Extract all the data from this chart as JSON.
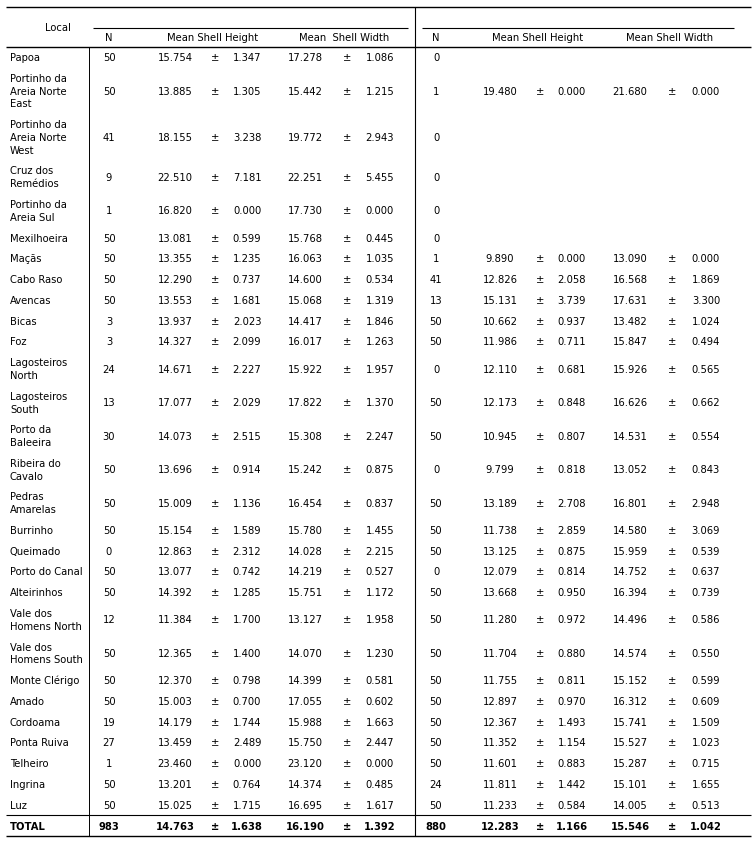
{
  "rows": [
    {
      "local": "Papoa",
      "n1": "50",
      "msh1": "15.754",
      "sd_h1": "1.347",
      "msw1": "17.278",
      "sd_w1": "1.086",
      "n2": "0",
      "msh2": "",
      "sd_h2": "",
      "msw2": "",
      "sd_w2": ""
    },
    {
      "local": "Portinho da\nAreia Norte\nEast",
      "n1": "50",
      "msh1": "13.885",
      "sd_h1": "1.305",
      "msw1": "15.442",
      "sd_w1": "1.215",
      "n2": "1",
      "msh2": "19.480",
      "sd_h2": "0.000",
      "msw2": "21.680",
      "sd_w2": "0.000"
    },
    {
      "local": "Portinho da\nAreia Norte\nWest",
      "n1": "41",
      "msh1": "18.155",
      "sd_h1": "3.238",
      "msw1": "19.772",
      "sd_w1": "2.943",
      "n2": "0",
      "msh2": "",
      "sd_h2": "",
      "msw2": "",
      "sd_w2": ""
    },
    {
      "local": "Cruz dos\nRemédios",
      "n1": "9",
      "msh1": "22.510",
      "sd_h1": "7.181",
      "msw1": "22.251",
      "sd_w1": "5.455",
      "n2": "0",
      "msh2": "",
      "sd_h2": "",
      "msw2": "",
      "sd_w2": ""
    },
    {
      "local": "Portinho da\nAreia Sul",
      "n1": "1",
      "msh1": "16.820",
      "sd_h1": "0.000",
      "msw1": "17.730",
      "sd_w1": "0.000",
      "n2": "0",
      "msh2": "",
      "sd_h2": "",
      "msw2": "",
      "sd_w2": ""
    },
    {
      "local": "Mexilhoeira",
      "n1": "50",
      "msh1": "13.081",
      "sd_h1": "0.599",
      "msw1": "15.768",
      "sd_w1": "0.445",
      "n2": "0",
      "msh2": "",
      "sd_h2": "",
      "msw2": "",
      "sd_w2": ""
    },
    {
      "local": "Maçãs",
      "n1": "50",
      "msh1": "13.355",
      "sd_h1": "1.235",
      "msw1": "16.063",
      "sd_w1": "1.035",
      "n2": "1",
      "msh2": "9.890",
      "sd_h2": "0.000",
      "msw2": "13.090",
      "sd_w2": "0.000"
    },
    {
      "local": "Cabo Raso",
      "n1": "50",
      "msh1": "12.290",
      "sd_h1": "0.737",
      "msw1": "14.600",
      "sd_w1": "0.534",
      "n2": "41",
      "msh2": "12.826",
      "sd_h2": "2.058",
      "msw2": "16.568",
      "sd_w2": "1.869"
    },
    {
      "local": "Avencas",
      "n1": "50",
      "msh1": "13.553",
      "sd_h1": "1.681",
      "msw1": "15.068",
      "sd_w1": "1.319",
      "n2": "13",
      "msh2": "15.131",
      "sd_h2": "3.739",
      "msw2": "17.631",
      "sd_w2": "3.300"
    },
    {
      "local": "Bicas",
      "n1": "3",
      "msh1": "13.937",
      "sd_h1": "2.023",
      "msw1": "14.417",
      "sd_w1": "1.846",
      "n2": "50",
      "msh2": "10.662",
      "sd_h2": "0.937",
      "msw2": "13.482",
      "sd_w2": "1.024"
    },
    {
      "local": "Foz",
      "n1": "3",
      "msh1": "14.327",
      "sd_h1": "2.099",
      "msw1": "16.017",
      "sd_w1": "1.263",
      "n2": "50",
      "msh2": "11.986",
      "sd_h2": "0.711",
      "msw2": "15.847",
      "sd_w2": "0.494"
    },
    {
      "local": "Lagosteiros\nNorth",
      "n1": "24",
      "msh1": "14.671",
      "sd_h1": "2.227",
      "msw1": "15.922",
      "sd_w1": "1.957",
      "n2": "0",
      "msh2": "12.110",
      "sd_h2": "0.681",
      "msw2": "15.926",
      "sd_w2": "0.565"
    },
    {
      "local": "Lagosteiros\nSouth",
      "n1": "13",
      "msh1": "17.077",
      "sd_h1": "2.029",
      "msw1": "17.822",
      "sd_w1": "1.370",
      "n2": "50",
      "msh2": "12.173",
      "sd_h2": "0.848",
      "msw2": "16.626",
      "sd_w2": "0.662"
    },
    {
      "local": "Porto da\nBaleeira",
      "n1": "30",
      "msh1": "14.073",
      "sd_h1": "2.515",
      "msw1": "15.308",
      "sd_w1": "2.247",
      "n2": "50",
      "msh2": "10.945",
      "sd_h2": "0.807",
      "msw2": "14.531",
      "sd_w2": "0.554"
    },
    {
      "local": "Ribeira do\nCavalo",
      "n1": "50",
      "msh1": "13.696",
      "sd_h1": "0.914",
      "msw1": "15.242",
      "sd_w1": "0.875",
      "n2": "0",
      "msh2": "9.799",
      "sd_h2": "0.818",
      "msw2": "13.052",
      "sd_w2": "0.843"
    },
    {
      "local": "Pedras\nAmarelas",
      "n1": "50",
      "msh1": "15.009",
      "sd_h1": "1.136",
      "msw1": "16.454",
      "sd_w1": "0.837",
      "n2": "50",
      "msh2": "13.189",
      "sd_h2": "2.708",
      "msw2": "16.801",
      "sd_w2": "2.948"
    },
    {
      "local": "Burrinho",
      "n1": "50",
      "msh1": "15.154",
      "sd_h1": "1.589",
      "msw1": "15.780",
      "sd_w1": "1.455",
      "n2": "50",
      "msh2": "11.738",
      "sd_h2": "2.859",
      "msw2": "14.580",
      "sd_w2": "3.069"
    },
    {
      "local": "Queimado",
      "n1": "0",
      "msh1": "12.863",
      "sd_h1": "2.312",
      "msw1": "14.028",
      "sd_w1": "2.215",
      "n2": "50",
      "msh2": "13.125",
      "sd_h2": "0.875",
      "msw2": "15.959",
      "sd_w2": "0.539"
    },
    {
      "local": "Porto do Canal",
      "n1": "50",
      "msh1": "13.077",
      "sd_h1": "0.742",
      "msw1": "14.219",
      "sd_w1": "0.527",
      "n2": "0",
      "msh2": "12.079",
      "sd_h2": "0.814",
      "msw2": "14.752",
      "sd_w2": "0.637"
    },
    {
      "local": "Alteirinhos",
      "n1": "50",
      "msh1": "14.392",
      "sd_h1": "1.285",
      "msw1": "15.751",
      "sd_w1": "1.172",
      "n2": "50",
      "msh2": "13.668",
      "sd_h2": "0.950",
      "msw2": "16.394",
      "sd_w2": "0.739"
    },
    {
      "local": "Vale dos\nHomens North",
      "n1": "12",
      "msh1": "11.384",
      "sd_h1": "1.700",
      "msw1": "13.127",
      "sd_w1": "1.958",
      "n2": "50",
      "msh2": "11.280",
      "sd_h2": "0.972",
      "msw2": "14.496",
      "sd_w2": "0.586"
    },
    {
      "local": "Vale dos\nHomens South",
      "n1": "50",
      "msh1": "12.365",
      "sd_h1": "1.400",
      "msw1": "14.070",
      "sd_w1": "1.230",
      "n2": "50",
      "msh2": "11.704",
      "sd_h2": "0.880",
      "msw2": "14.574",
      "sd_w2": "0.550"
    },
    {
      "local": "Monte Clérigo",
      "n1": "50",
      "msh1": "12.370",
      "sd_h1": "0.798",
      "msw1": "14.399",
      "sd_w1": "0.581",
      "n2": "50",
      "msh2": "11.755",
      "sd_h2": "0.811",
      "msw2": "15.152",
      "sd_w2": "0.599"
    },
    {
      "local": "Amado",
      "n1": "50",
      "msh1": "15.003",
      "sd_h1": "0.700",
      "msw1": "17.055",
      "sd_w1": "0.602",
      "n2": "50",
      "msh2": "12.897",
      "sd_h2": "0.970",
      "msw2": "16.312",
      "sd_w2": "0.609"
    },
    {
      "local": "Cordoama",
      "n1": "19",
      "msh1": "14.179",
      "sd_h1": "1.744",
      "msw1": "15.988",
      "sd_w1": "1.663",
      "n2": "50",
      "msh2": "12.367",
      "sd_h2": "1.493",
      "msw2": "15.741",
      "sd_w2": "1.509"
    },
    {
      "local": "Ponta Ruiva",
      "n1": "27",
      "msh1": "13.459",
      "sd_h1": "2.489",
      "msw1": "15.750",
      "sd_w1": "2.447",
      "n2": "50",
      "msh2": "11.352",
      "sd_h2": "1.154",
      "msw2": "15.527",
      "sd_w2": "1.023"
    },
    {
      "local": "Telheiro",
      "n1": "1",
      "msh1": "23.460",
      "sd_h1": "0.000",
      "msw1": "23.120",
      "sd_w1": "0.000",
      "n2": "50",
      "msh2": "11.601",
      "sd_h2": "0.883",
      "msw2": "15.287",
      "sd_w2": "0.715"
    },
    {
      "local": "Ingrina",
      "n1": "50",
      "msh1": "13.201",
      "sd_h1": "0.764",
      "msw1": "14.374",
      "sd_w1": "0.485",
      "n2": "24",
      "msh2": "11.811",
      "sd_h2": "1.442",
      "msw2": "15.101",
      "sd_w2": "1.655"
    },
    {
      "local": "Luz",
      "n1": "50",
      "msh1": "15.025",
      "sd_h1": "1.715",
      "msw1": "16.695",
      "sd_w1": "1.617",
      "n2": "50",
      "msh2": "11.233",
      "sd_h2": "0.584",
      "msw2": "14.005",
      "sd_w2": "0.513"
    },
    {
      "local": "TOTAL",
      "n1": "983",
      "msh1": "14.763",
      "sd_h1": "1.638",
      "msw1": "16.190",
      "sd_w1": "1.392",
      "n2": "880",
      "msh2": "12.283",
      "sd_h2": "1.166",
      "msw2": "15.546",
      "sd_w2": "1.042"
    }
  ],
  "pm": "±",
  "bg_color": "#ffffff",
  "text_color": "#000000",
  "font_size": 7.2,
  "header_font_size": 7.2
}
